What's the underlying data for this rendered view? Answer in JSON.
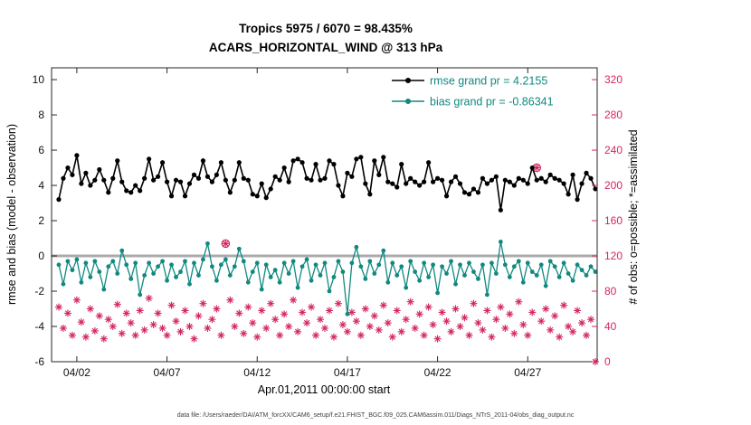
{
  "chart_data": {
    "type": "line",
    "title": "Tropics 5975 / 6070 = 98.435%",
    "subtitle": "ACARS_HORIZONTAL_WIND @ 313 hPa",
    "xlabel": "Apr.01,2011 00:00:00 start",
    "ylabel_left": "rmse and bias (model - observation)",
    "ylabel_right": "# of obs: o=possible; *=assimilated",
    "footer": "data file: /Users/raeder/DAI/ATM_forcXX/CAM6_setup/f.e21.FHIST_BGC.f09_025.CAM6assim.011/Diags_NTrS_2011-04/obs_diag_output.nc",
    "xlim": [
      0.6,
      30.85
    ],
    "ylim_left": [
      -6,
      10.67
    ],
    "ylim_right": [
      0,
      333.4
    ],
    "xtick_values": [
      2,
      7,
      12,
      17,
      22,
      27
    ],
    "xtick_labels": [
      "04/02",
      "04/07",
      "04/12",
      "04/17",
      "04/22",
      "04/27"
    ],
    "ytick_left": [
      -6,
      -4,
      -2,
      0,
      2,
      4,
      6,
      8,
      10
    ],
    "ytick_right": [
      0,
      40,
      80,
      120,
      160,
      200,
      240,
      280,
      320
    ],
    "zero_line_value": 0,
    "t_start": 1.0,
    "t_step": 0.25,
    "series": [
      {
        "name": "rmse",
        "axis": "left",
        "marker": "circle",
        "color": "#000000",
        "grand_pr": 4.2155,
        "values": [
          3.2,
          4.4,
          5.0,
          4.6,
          5.7,
          4.1,
          4.7,
          4.0,
          4.3,
          4.9,
          4.3,
          3.6,
          4.4,
          5.4,
          4.2,
          3.7,
          3.6,
          4.0,
          3.7,
          4.4,
          5.5,
          4.3,
          4.5,
          5.3,
          4.2,
          3.4,
          4.3,
          4.2,
          3.4,
          4.1,
          4.6,
          4.4,
          5.4,
          4.5,
          4.2,
          4.6,
          5.3,
          4.3,
          3.6,
          4.3,
          5.3,
          4.4,
          4.3,
          3.5,
          3.4,
          4.1,
          3.3,
          3.8,
          4.5,
          4.3,
          5.0,
          4.2,
          5.4,
          5.5,
          5.3,
          4.4,
          4.3,
          5.2,
          4.3,
          4.4,
          5.4,
          5.2,
          4.0,
          3.4,
          4.7,
          4.5,
          5.5,
          5.6,
          4.1,
          3.5,
          5.4,
          4.6,
          5.6,
          4.2,
          4.1,
          3.9,
          5.2,
          4.1,
          4.4,
          4.2,
          4.0,
          4.2,
          5.3,
          4.2,
          4.4,
          4.3,
          3.4,
          4.2,
          4.5,
          4.1,
          3.6,
          3.5,
          3.8,
          3.6,
          4.4,
          4.1,
          4.3,
          4.5,
          2.6,
          4.3,
          4.2,
          4.0,
          4.4,
          4.3,
          4.1,
          5.0,
          4.3,
          4.4,
          4.2,
          4.6,
          4.4,
          4.3,
          4.1,
          3.5,
          4.6,
          3.2,
          4.1,
          4.7,
          4.4,
          3.8
        ]
      },
      {
        "name": "bias",
        "axis": "left",
        "marker": "circle",
        "color": "#108980",
        "grand_pr": -0.86341,
        "values": [
          -0.5,
          -1.6,
          -0.3,
          -0.8,
          -0.2,
          -1.5,
          -0.4,
          -1.2,
          -0.3,
          -0.9,
          -1.9,
          -0.6,
          -0.3,
          -1.0,
          0.3,
          -0.5,
          -1.3,
          -0.4,
          -2.2,
          -1.1,
          -0.4,
          -1.0,
          -0.6,
          -0.3,
          -1.4,
          -0.5,
          -1.2,
          -0.9,
          -0.3,
          -1.6,
          -0.4,
          -1.1,
          -0.2,
          0.7,
          -0.6,
          -1.4,
          -0.5,
          -0.2,
          -1.1,
          -0.6,
          0.4,
          -0.3,
          -1.5,
          -0.9,
          -0.4,
          -1.9,
          -0.5,
          -1.2,
          -0.8,
          -1.5,
          -0.4,
          -1.0,
          -0.3,
          -1.8,
          -0.6,
          -0.2,
          -1.4,
          -0.5,
          -1.1,
          -0.4,
          -2.0,
          -1.2,
          -0.3,
          -0.9,
          -3.3,
          -0.4,
          0.5,
          -0.6,
          -1.3,
          -0.3,
          -1.0,
          -0.5,
          0.3,
          -1.5,
          -0.4,
          -1.1,
          -0.6,
          -1.8,
          -0.3,
          -0.9,
          -1.4,
          -0.4,
          -1.2,
          -0.5,
          -2.1,
          -0.6,
          -1.0,
          -0.3,
          -1.6,
          -0.5,
          -1.1,
          -0.4,
          -0.9,
          -1.3,
          -0.5,
          -2.2,
          -0.4,
          -1.0,
          0.8,
          -0.5,
          -1.2,
          -0.6,
          -0.3,
          -1.5,
          -0.4,
          -0.9,
          -1.1,
          -0.5,
          -1.7,
          -0.3,
          -0.6,
          -1.2,
          -0.4,
          -1.0,
          -1.4,
          -0.5,
          -0.8,
          -1.1,
          -0.6,
          -0.9
        ]
      },
      {
        "name": "obs_count",
        "axis": "right",
        "marker": "asterisk",
        "color": "#d3265f",
        "values": [
          62,
          38,
          55,
          30,
          70,
          45,
          28,
          60,
          35,
          52,
          26,
          48,
          40,
          65,
          32,
          55,
          44,
          30,
          58,
          36,
          72,
          42,
          55,
          38,
          30,
          64,
          46,
          34,
          58,
          40,
          26,
          52,
          66,
          38,
          48,
          60,
          30,
          134,
          70,
          40,
          55,
          32,
          62,
          44,
          28,
          58,
          38,
          66,
          48,
          30,
          54,
          40,
          70,
          34,
          56,
          44,
          62,
          30,
          48,
          38,
          58,
          28,
          66,
          42,
          34,
          56,
          46,
          30,
          60,
          40,
          52,
          36,
          64,
          44,
          28,
          58,
          34,
          48,
          68,
          38,
          54,
          30,
          62,
          42,
          26,
          56,
          46,
          34,
          60,
          40,
          50,
          30,
          66,
          44,
          36,
          58,
          28,
          48,
          62,
          38,
          54,
          32,
          68,
          42,
          30,
          56,
          220,
          46,
          60,
          36,
          52,
          28,
          64,
          40,
          34,
          58,
          44,
          30,
          48,
          0
        ]
      }
    ],
    "legend": [
      {
        "label": "rmse grand pr = 4.2155",
        "line_color": "#000000",
        "text_color": "#108980"
      },
      {
        "label": "bias grand pr = -0.86341",
        "line_color": "#108980",
        "text_color": "#108980"
      }
    ],
    "colors": {
      "zero_line": "#ababab",
      "axis_box": "#262626",
      "right_axis": "#d3265f",
      "tick_label": "#111111"
    }
  }
}
